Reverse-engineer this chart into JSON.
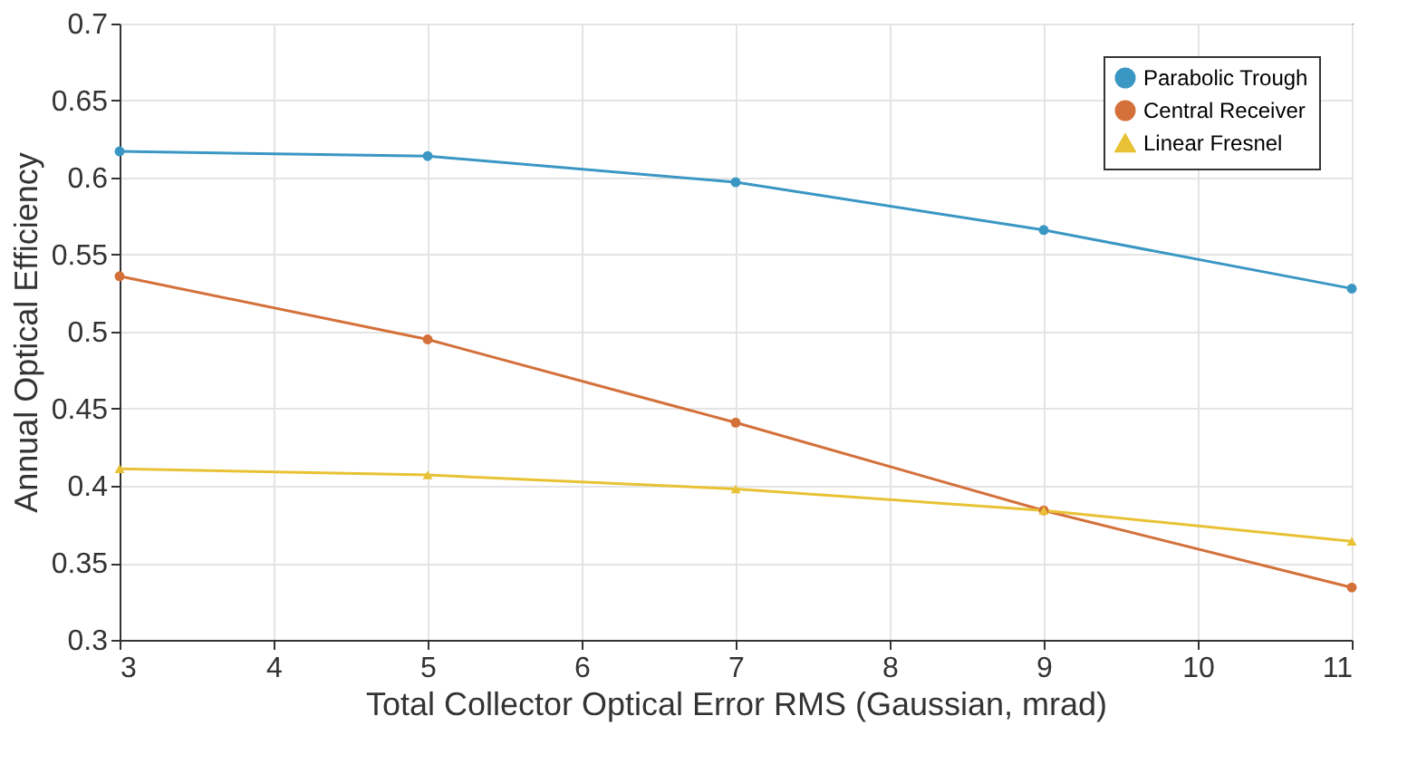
{
  "chart_data": {
    "type": "line",
    "xlabel": "Total Collector Optical Error RMS (Gaussian, mrad)",
    "ylabel": "Annual Optical Efficiency",
    "x": [
      3,
      5,
      7,
      9,
      11
    ],
    "xlim": [
      3,
      11
    ],
    "xticks": [
      3,
      4,
      5,
      6,
      7,
      8,
      9,
      10,
      11
    ],
    "ylim": [
      0.3,
      0.7
    ],
    "yticks": [
      0.3,
      0.35,
      0.4,
      0.45,
      0.5,
      0.55,
      0.6,
      0.65,
      0.7
    ],
    "grid": true,
    "legend": "top right",
    "line_style": "solid",
    "series": [
      {
        "name": "Parabolic Trough",
        "color": "#3a97c4",
        "marker": "circle",
        "values": [
          0.617,
          0.614,
          0.597,
          0.566,
          0.528
        ]
      },
      {
        "name": "Central Receiver",
        "color": "#d4703a",
        "marker": "circle",
        "values": [
          0.536,
          0.495,
          0.441,
          0.384,
          0.334
        ]
      },
      {
        "name": "Linear Fresnel",
        "color": "#e8c234",
        "marker": "triangle",
        "values": [
          0.411,
          0.407,
          0.398,
          0.384,
          0.364
        ]
      }
    ]
  }
}
